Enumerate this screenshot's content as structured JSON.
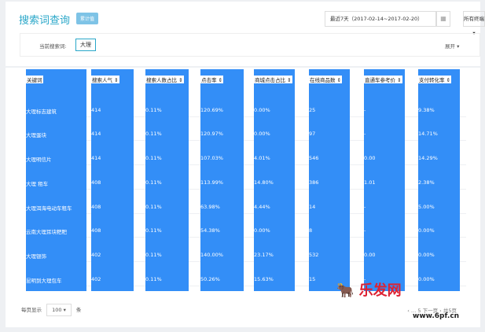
{
  "header": {
    "title": "搜索词查询",
    "badge": "累计值",
    "date_range": "最近7天（2017-02-14~2017-02-20）",
    "terminal": "所有终端 ▾",
    "calendar_icon": "calendar-icon"
  },
  "filter": {
    "label": "当前搜索词:",
    "value": "大理",
    "expand": "展开 ▾"
  },
  "table": {
    "columns": [
      "关键词",
      "搜索人气 ⇕",
      "搜索人数占比 ⇕",
      "点击率 ⇕",
      "商城点击占比 ⇕",
      "在线商品数 ⇕",
      "直通车参考价 ⇕",
      "支付转化率 ⇕"
    ],
    "rows": [
      [
        "大理标志建筑",
        "414",
        "0.11%",
        "120.69%",
        "0.00%",
        "25",
        "-",
        "9.38%"
      ],
      [
        "大理蛋块",
        "414",
        "0.11%",
        "120.97%",
        "0.00%",
        "97",
        "-",
        "14.71%"
      ],
      [
        "大理明信片",
        "414",
        "0.11%",
        "107.03%",
        "4.01%",
        "546",
        "0.00",
        "14.29%"
      ],
      [
        "大理 租车",
        "408",
        "0.11%",
        "113.99%",
        "14.80%",
        "386",
        "1.01",
        "2.38%"
      ],
      [
        "大理洱海电动车租车",
        "408",
        "0.11%",
        "63.98%",
        "4.44%",
        "14",
        "-",
        "5.00%"
      ],
      [
        "云南大理耳块粑粑",
        "408",
        "0.11%",
        "54.38%",
        "0.00%",
        "8",
        "-",
        "0.00%"
      ],
      [
        "大理银饰",
        "402",
        "0.11%",
        "140.00%",
        "23.17%",
        "532",
        "0.00",
        "0.00%"
      ],
      [
        "昆明到大理包车",
        "402",
        "0.11%",
        "50.26%",
        "15.63%",
        "15",
        "-",
        "0.00%"
      ]
    ]
  },
  "pagination": {
    "per_page_label": "每页显示",
    "per_page": "100",
    "unit": "条",
    "pages": "‹ … 5 下一页 › 共5页"
  },
  "watermark": {
    "text": "乐发网",
    "url": "www.6pf.cn"
  },
  "colors": {
    "highlight": "#338ef7",
    "accent": "#2aa7c9"
  }
}
